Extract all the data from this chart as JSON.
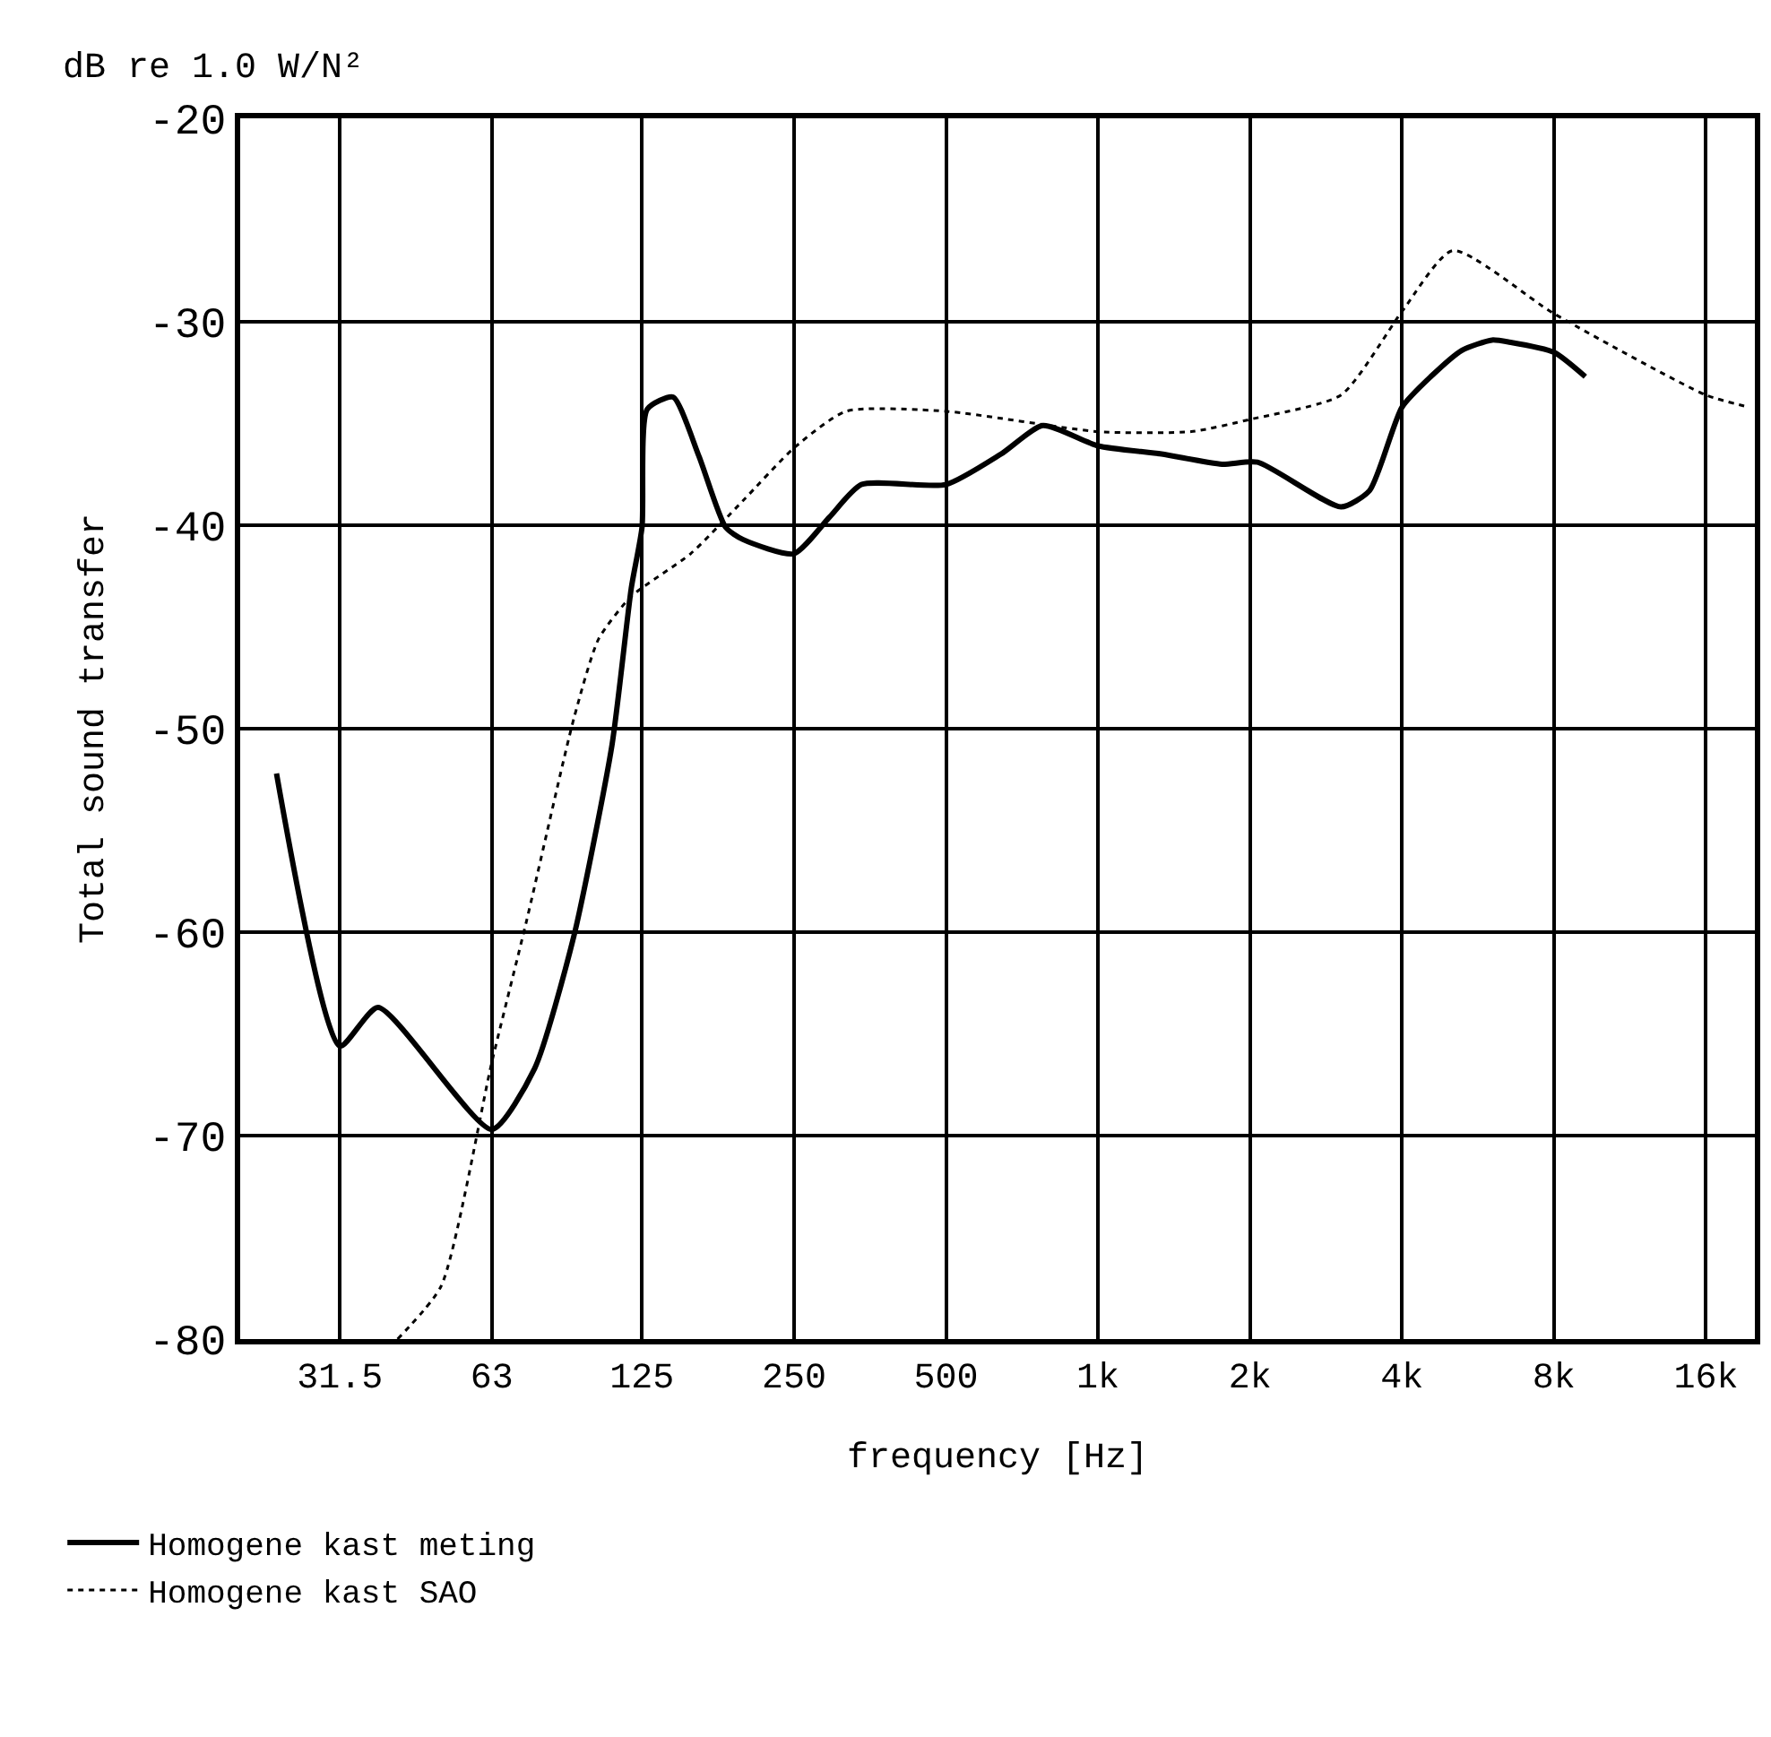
{
  "chart_data": {
    "type": "line",
    "xlabel": "frequency [Hz]",
    "ylabel": "Total sound transfer",
    "annotations": [
      "dB re 1.0 W/N²"
    ],
    "log": "x",
    "xlim": [
      20,
      20000
    ],
    "ylim": [
      -80,
      -20
    ],
    "xticks": [
      31.5,
      63,
      125,
      250,
      500,
      {
        "value": 1000,
        "label": "1k"
      },
      {
        "value": 2000,
        "label": "2k"
      },
      {
        "value": 4000,
        "label": "4k"
      },
      {
        "value": 8000,
        "label": "8k"
      },
      {
        "value": 16000,
        "label": "16k"
      }
    ],
    "yticks": [
      -20,
      -30,
      -40,
      -50,
      -60,
      -70,
      -80
    ],
    "grid": true,
    "legend": "bottom",
    "marker": "none",
    "series": [
      {
        "name": "Homogene kast meting",
        "color": "#000000",
        "line_style": "solid",
        "x": [
          23.6,
          31.5,
          37.5,
          63,
          76.6,
          91.6,
          109,
          119,
          125,
          128,
          144,
          162,
          183,
          198,
          250,
          294,
          340,
          500,
          643,
          777,
          1000,
          1336,
          1760,
          2070,
          3030,
          3450,
          4000,
          4560,
          5260,
          6030,
          6530,
          8000,
          9230
        ],
        "values": [
          -52.2,
          -65.6,
          -63.7,
          -69.7,
          -66.7,
          -60.2,
          -50.8,
          -43.1,
          -40.1,
          -34.3,
          -33.7,
          -36.6,
          -40.1,
          -40.7,
          -41.4,
          -39.6,
          -38.0,
          -38.0,
          -36.5,
          -35.1,
          -36.1,
          -36.5,
          -37.0,
          -36.9,
          -39.1,
          -38.3,
          -34.2,
          -32.7,
          -31.4,
          -30.9,
          -31.0,
          -31.5,
          -32.7
        ]
      },
      {
        "name": "Homogene kast SAO",
        "color": "#000000",
        "line_style": "dotted",
        "x": [
          41,
          50,
          63,
          73.9,
          91.6,
          102.5,
          119,
          156,
          198,
          250,
          317,
          500,
          1000,
          1530,
          2000,
          3030,
          4000,
          5040,
          8000,
          16000,
          19500
        ],
        "values": [
          -80,
          -77.4,
          -66.4,
          -59.4,
          -49.5,
          -45.6,
          -43.5,
          -41.4,
          -38.8,
          -36.2,
          -34.4,
          -34.4,
          -35.4,
          -35.4,
          -34.8,
          -33.6,
          -29.5,
          -26.5,
          -29.6,
          -33.6,
          -34.2
        ]
      }
    ]
  }
}
